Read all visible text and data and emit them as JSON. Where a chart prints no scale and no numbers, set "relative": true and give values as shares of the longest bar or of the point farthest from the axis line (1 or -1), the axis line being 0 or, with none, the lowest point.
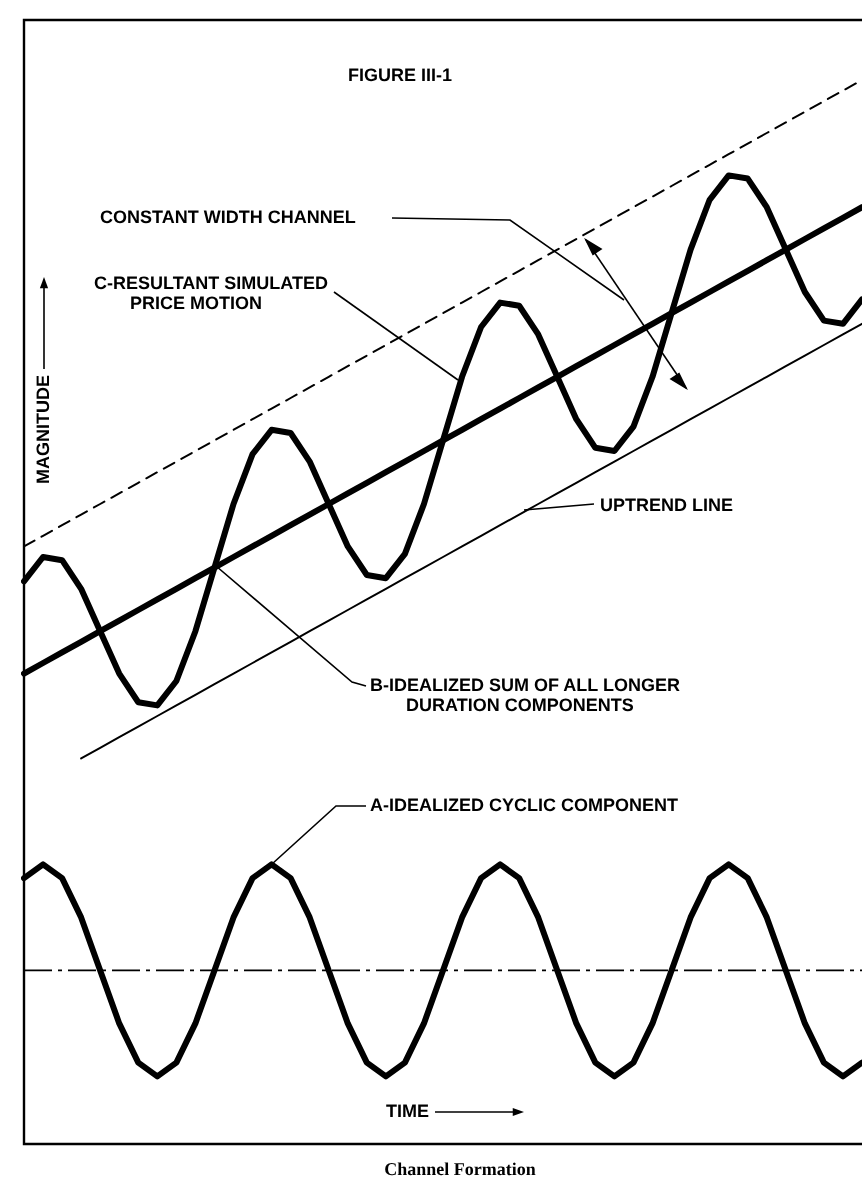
{
  "chart_data": {
    "type": "line",
    "title": "FIGURE III-1",
    "xlabel": "TIME",
    "ylabel": "MAGNITUDE",
    "relative": true,
    "legend": false,
    "marker": "none",
    "annotations": [
      "CONSTANT WIDTH CHANNEL",
      "C-RESULTANT SIMULATED PRICE MOTION",
      "UPTREND LINE",
      "Channel Formation"
    ],
    "categories": [
      null,
      null,
      null,
      null,
      null,
      null,
      null,
      null,
      null,
      null,
      null,
      null,
      null,
      null,
      null,
      null,
      null,
      null,
      null,
      null,
      null,
      null,
      null,
      null,
      null,
      null,
      null,
      null,
      null,
      null,
      null,
      null,
      null,
      null,
      null,
      null,
      null,
      null,
      null,
      null,
      null,
      null,
      null,
      null,
      null
    ],
    "ref_lines": [
      {
        "axis": "y",
        "value": 0.16,
        "line_style": "dashed",
        "color": "#000000"
      }
    ],
    "series": [
      {
        "name": "A-IDEALIZED CYCLIC COMPONENT",
        "color": "#000000",
        "line_style": "solid",
        "values": [
          0.247,
          0.26,
          0.247,
          0.21,
          0.16,
          0.11,
          0.073,
          0.06,
          0.073,
          0.11,
          0.16,
          0.21,
          0.247,
          0.26,
          0.247,
          0.21,
          0.16,
          0.11,
          0.073,
          0.06,
          0.073,
          0.11,
          0.16,
          0.21,
          0.247,
          0.26,
          0.247,
          0.21,
          0.16,
          0.11,
          0.073,
          0.06,
          0.073,
          0.11,
          0.16,
          0.21,
          0.247,
          0.26,
          0.247,
          0.21,
          0.16,
          0.11,
          0.073,
          0.06,
          0.073
        ]
      },
      {
        "name": "B-IDEALIZED SUM OF ALL LONGER DURATION COMPONENTS",
        "color": "#000000",
        "line_style": "solid",
        "values": [
          0.44,
          0.45,
          0.46,
          0.47,
          0.48,
          0.49,
          0.5,
          0.51,
          0.52,
          0.53,
          0.54,
          0.55,
          0.56,
          0.57,
          0.58,
          0.59,
          0.6,
          0.61,
          0.62,
          0.63,
          0.64,
          0.65,
          0.66,
          0.67,
          0.68,
          0.69,
          0.7,
          0.71,
          0.72,
          0.73,
          0.74,
          0.75,
          0.76,
          0.77,
          0.78,
          0.79,
          0.8,
          0.81,
          0.82,
          0.83,
          0.84,
          0.85,
          0.86,
          0.87,
          0.88
        ]
      },
      {
        "color": "#000000",
        "line_style": "solid",
        "values": [
          0.527,
          0.55,
          0.547,
          0.52,
          0.48,
          0.44,
          0.413,
          0.41,
          0.433,
          0.48,
          0.54,
          0.6,
          0.647,
          0.67,
          0.667,
          0.64,
          0.6,
          0.56,
          0.533,
          0.53,
          0.553,
          0.6,
          0.66,
          0.72,
          0.767,
          0.79,
          0.787,
          0.76,
          0.72,
          0.68,
          0.653,
          0.65,
          0.673,
          0.72,
          0.78,
          0.84,
          0.887,
          0.91,
          0.907,
          0.88,
          0.84,
          0.8,
          0.773,
          0.77,
          0.793
        ]
      },
      {
        "color": "#000000",
        "line_style": "solid",
        "values": [
          null,
          null,
          null,
          0.36,
          0.37,
          0.38,
          0.39,
          0.4,
          0.41,
          0.42,
          0.43,
          0.44,
          0.45,
          0.46,
          0.47,
          0.48,
          0.49,
          0.5,
          0.51,
          0.52,
          0.53,
          0.54,
          0.55,
          0.56,
          0.57,
          0.58,
          0.59,
          0.6,
          0.61,
          0.62,
          0.63,
          0.64,
          0.65,
          0.66,
          0.67,
          0.68,
          0.69,
          0.7,
          0.71,
          0.72,
          0.73,
          0.74,
          0.75,
          0.76,
          0.77
        ]
      },
      {
        "color": "#000000",
        "line_style": "dashed",
        "values": [
          0.56,
          0.57,
          0.58,
          0.59,
          0.6,
          0.61,
          0.62,
          0.63,
          0.64,
          0.65,
          0.66,
          0.67,
          0.68,
          0.69,
          0.7,
          0.71,
          0.72,
          0.73,
          0.74,
          0.75,
          0.76,
          0.77,
          0.78,
          0.79,
          0.8,
          0.81,
          0.82,
          0.83,
          0.84,
          0.85,
          0.86,
          0.87,
          0.88,
          0.89,
          0.9,
          0.91,
          0.92,
          0.93,
          0.94,
          0.95,
          0.96,
          0.97,
          0.98,
          0.99,
          1.0
        ]
      }
    ]
  }
}
